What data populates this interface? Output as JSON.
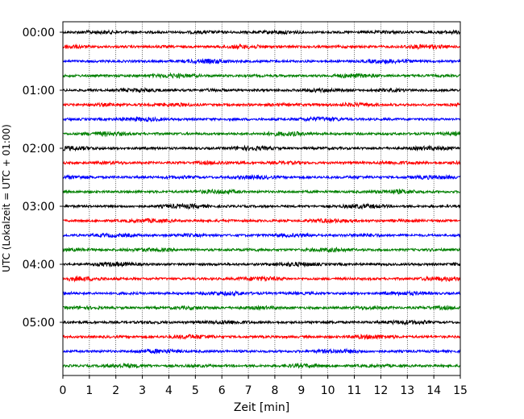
{
  "chart_data": {
    "type": "line",
    "title": "",
    "xlabel": "Zeit  [min]",
    "ylabel": "UTC (Lokalzeit = UTC + 01:00)",
    "xlim": [
      0,
      15
    ],
    "xticks": [
      0,
      1,
      2,
      3,
      4,
      5,
      6,
      7,
      8,
      9,
      10,
      11,
      12,
      13,
      14,
      15
    ],
    "xtick_labels": [
      "0",
      "1",
      "2",
      "3",
      "4",
      "5",
      "6",
      "7",
      "8",
      "9",
      "10",
      "11",
      "12",
      "13",
      "14",
      "15"
    ],
    "ytick_labels": [
      "00:00",
      "01:00",
      "02:00",
      "03:00",
      "04:00",
      "05:00"
    ],
    "traces_per_hour": 4,
    "trace_duration_min": 15,
    "trace_start_times": [
      "00:00",
      "00:15",
      "00:30",
      "00:45",
      "01:00",
      "01:15",
      "01:30",
      "01:45",
      "02:00",
      "02:15",
      "02:30",
      "02:45",
      "03:00",
      "03:15",
      "03:30",
      "03:45",
      "04:00",
      "04:15",
      "04:30",
      "04:45",
      "05:00",
      "05:15",
      "05:30",
      "05:45"
    ],
    "trace_colors": [
      "#000000",
      "#ff0000",
      "#0000ff",
      "#008000"
    ],
    "grid_x": true,
    "grid_y": false
  }
}
